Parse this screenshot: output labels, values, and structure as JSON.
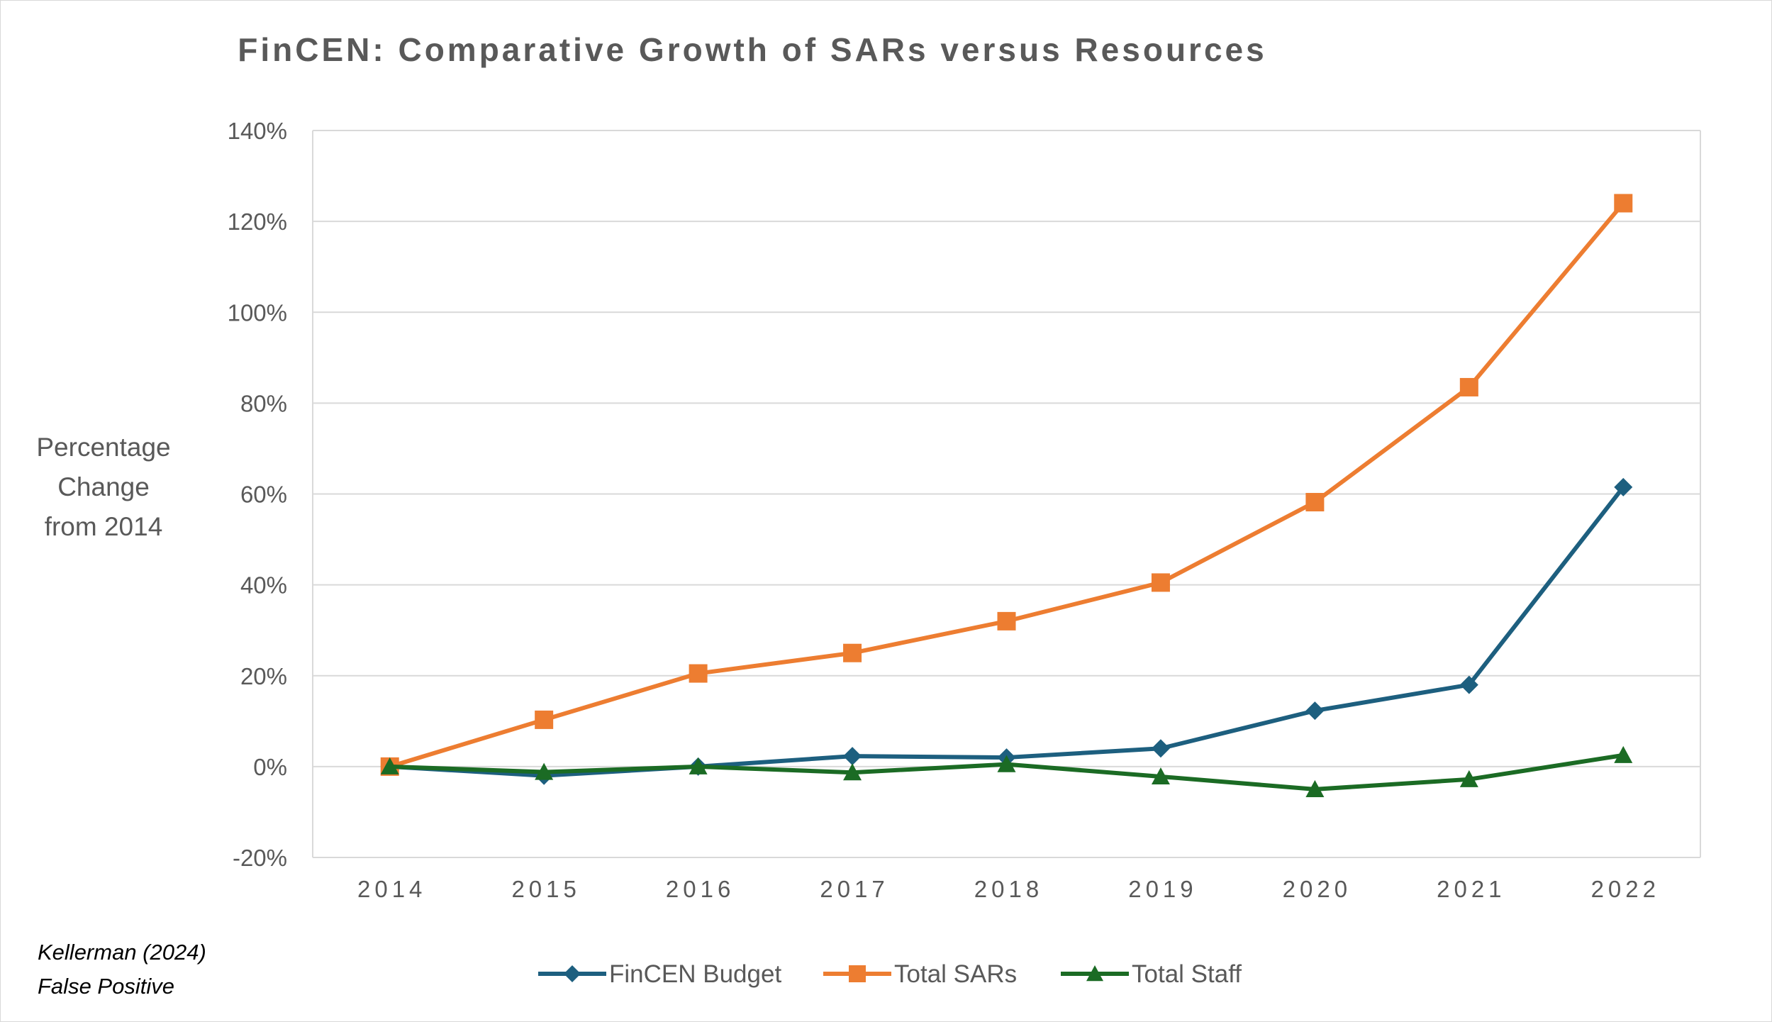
{
  "chart_data": {
    "type": "line",
    "title": "FinCEN: Comparative Growth of SARs versus Resources",
    "ylabel": "Percentage\nChange\nfrom 2014",
    "xlabel": "",
    "categories": [
      "2014",
      "2015",
      "2016",
      "2017",
      "2018",
      "2019",
      "2020",
      "2021",
      "2022"
    ],
    "yticks": [
      "-20%",
      "0%",
      "20%",
      "40%",
      "60%",
      "80%",
      "100%",
      "120%",
      "140%"
    ],
    "ylim": [
      -20,
      140
    ],
    "y_unit": "%",
    "grid": true,
    "legend_position": "bottom",
    "series": [
      {
        "name": "FinCEN Budget",
        "color": "#1d5f7f",
        "marker": "diamond",
        "values": [
          0,
          -2,
          0,
          2.3,
          2,
          4,
          12.3,
          18,
          61.5
        ]
      },
      {
        "name": "Total SARs",
        "color": "#ed7d31",
        "marker": "square",
        "values": [
          0,
          10.3,
          20.5,
          25,
          32,
          40.5,
          58.2,
          83.5,
          124
        ]
      },
      {
        "name": "Total Staff",
        "color": "#1b6b24",
        "marker": "triangle",
        "values": [
          0,
          -1.2,
          0,
          -1.3,
          0.5,
          -2.2,
          -5,
          -2.8,
          2.5
        ]
      }
    ]
  },
  "source_note": [
    "Kellerman (2024)",
    "False Positive"
  ]
}
